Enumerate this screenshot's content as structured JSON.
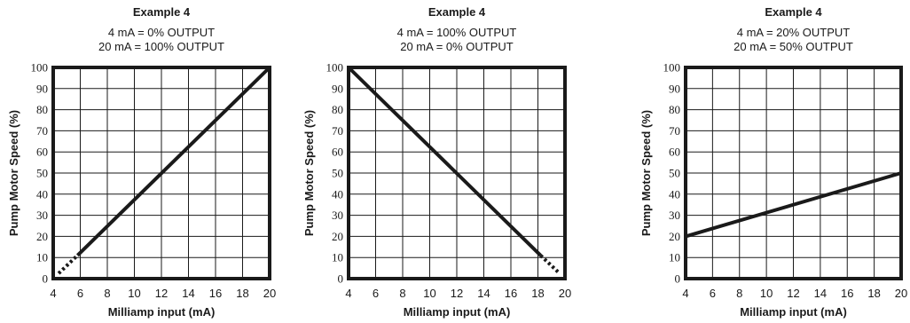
{
  "chart_data": [
    {
      "type": "line",
      "title": "Example 4",
      "subtitle_lines": [
        "4 mA = 0% OUTPUT",
        "20 mA = 100% OUTPUT"
      ],
      "xlabel": "Milliamp input (mA)",
      "ylabel": "Pump Motor Speed (%)",
      "xlim": [
        4,
        20
      ],
      "ylim": [
        0,
        100
      ],
      "x_ticks": [
        4,
        6,
        8,
        10,
        12,
        14,
        16,
        18,
        20
      ],
      "y_ticks": [
        0,
        10,
        20,
        30,
        40,
        50,
        60,
        70,
        80,
        90,
        100
      ],
      "grid": true,
      "series": [
        {
          "style": "solid",
          "points": [
            [
              5.8,
              11
            ],
            [
              20,
              100
            ]
          ]
        },
        {
          "style": "dotted",
          "points": [
            [
              4.4,
              2.5
            ],
            [
              5.8,
              11
            ]
          ]
        }
      ]
    },
    {
      "type": "line",
      "title": "Example 4",
      "subtitle_lines": [
        "4 mA = 100% OUTPUT",
        "20 mA = 0% OUTPUT"
      ],
      "xlabel": "Milliamp input (mA)",
      "ylabel": "Pump Motor Speed (%)",
      "xlim": [
        4,
        20
      ],
      "ylim": [
        0,
        100
      ],
      "x_ticks": [
        4,
        6,
        8,
        10,
        12,
        14,
        16,
        18,
        20
      ],
      "y_ticks": [
        0,
        10,
        20,
        30,
        40,
        50,
        60,
        70,
        80,
        90,
        100
      ],
      "grid": true,
      "series": [
        {
          "style": "solid",
          "points": [
            [
              4,
              100
            ],
            [
              18.2,
              11
            ]
          ]
        },
        {
          "style": "dotted",
          "points": [
            [
              18.2,
              11
            ],
            [
              19.6,
              2.5
            ]
          ]
        }
      ]
    },
    {
      "type": "line",
      "title": "Example 4",
      "subtitle_lines": [
        "4 mA = 20% OUTPUT",
        "20 mA = 50% OUTPUT"
      ],
      "xlabel": "Milliamp input (mA)",
      "ylabel": "Pump Motor Speed (%)",
      "xlim": [
        4,
        20
      ],
      "ylim": [
        0,
        100
      ],
      "x_ticks": [
        4,
        6,
        8,
        10,
        12,
        14,
        16,
        18,
        20
      ],
      "y_ticks": [
        0,
        10,
        20,
        30,
        40,
        50,
        60,
        70,
        80,
        90,
        100
      ],
      "grid": true,
      "series": [
        {
          "style": "solid",
          "points": [
            [
              4,
              20
            ],
            [
              20,
              50
            ]
          ]
        }
      ]
    }
  ]
}
